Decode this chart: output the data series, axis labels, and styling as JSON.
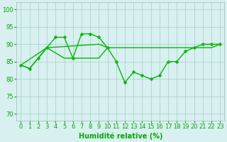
{
  "line_markers": {
    "x": [
      0,
      1,
      2,
      3,
      4,
      5,
      6,
      7,
      8,
      9,
      10,
      11,
      12,
      13,
      14,
      15,
      16,
      17,
      18,
      19,
      20,
      21,
      22,
      23
    ],
    "y": [
      84,
      83,
      86,
      89,
      92,
      92,
      86,
      93,
      93,
      92,
      89,
      85,
      79,
      82,
      81,
      80,
      81,
      85,
      85,
      88,
      89,
      90,
      90,
      90
    ],
    "color": "#00bb00",
    "marker": "D",
    "markersize": 2.5,
    "linewidth": 1.0
  },
  "line_flat_top": {
    "x": [
      0,
      3,
      9,
      10,
      14,
      15,
      16,
      17,
      18,
      21,
      22,
      23
    ],
    "y": [
      84,
      89,
      90,
      89,
      89,
      89,
      89,
      89,
      89,
      89,
      89,
      90
    ],
    "color": "#00bb00",
    "linewidth": 1.0
  },
  "line_lower": {
    "x": [
      0,
      1,
      2,
      3,
      5,
      6,
      7,
      9,
      10
    ],
    "y": [
      84,
      83,
      86,
      89,
      86,
      86,
      86,
      86,
      89
    ],
    "color": "#00bb00",
    "linewidth": 1.0
  },
  "background_color": "#d8f0f0",
  "grid_color": "#aacccc",
  "xlabel": "Humidité relative (%)",
  "xlabel_color": "#00aa00",
  "xlabel_fontsize": 7,
  "ylabel_ticks": [
    70,
    75,
    80,
    85,
    90,
    95,
    100
  ],
  "xlim": [
    -0.5,
    23.5
  ],
  "ylim": [
    68,
    102
  ],
  "tick_fontsize": 6,
  "tick_color": "#00aa00",
  "xticks": [
    0,
    1,
    2,
    3,
    4,
    5,
    6,
    7,
    8,
    9,
    10,
    11,
    12,
    13,
    14,
    15,
    16,
    17,
    18,
    19,
    20,
    21,
    22,
    23
  ]
}
